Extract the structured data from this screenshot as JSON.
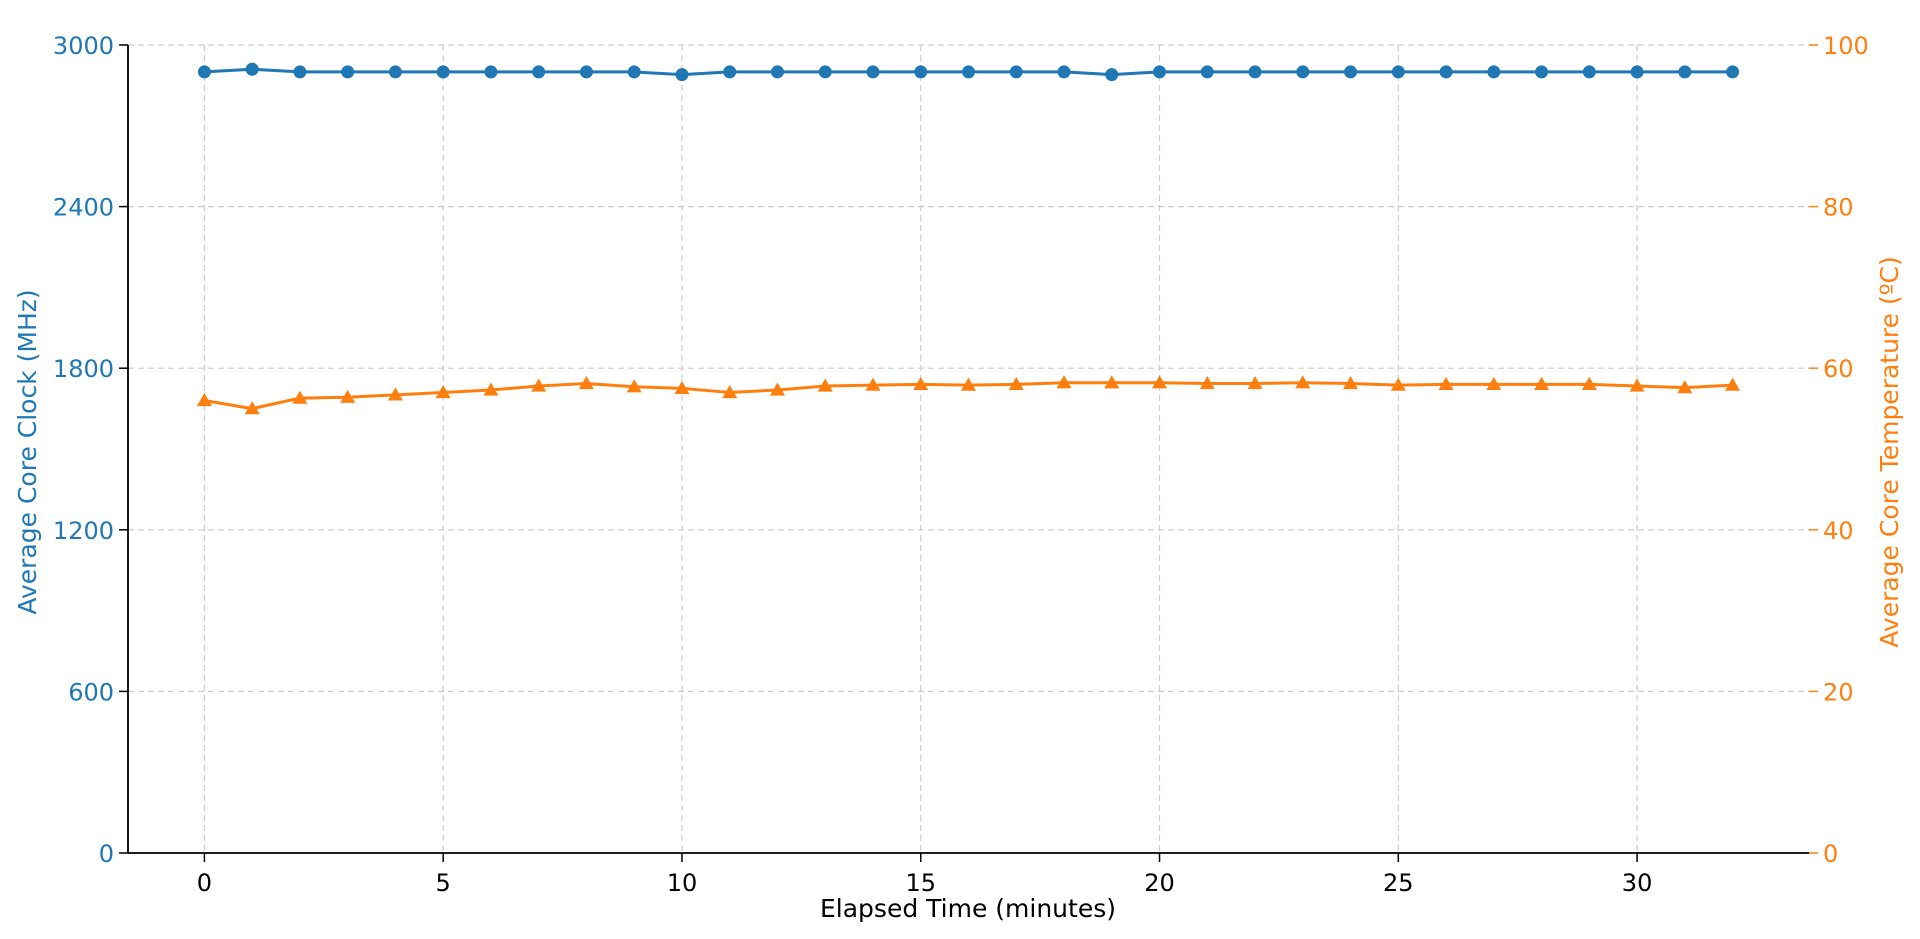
{
  "chart_data": {
    "type": "line",
    "title": "",
    "xlabel": "Elapsed Time (minutes)",
    "ylabel_left": "Average Core Clock (MHz)",
    "ylabel_right": "Average Core Temperature (ºC)",
    "xlim": [
      -1.6,
      33.6
    ],
    "ylim_left": [
      0,
      3000
    ],
    "ylim_right": [
      0,
      100
    ],
    "x_ticks": [
      "0",
      "5",
      "10",
      "15",
      "20",
      "25",
      "30"
    ],
    "y_left_ticks": [
      "0",
      "600",
      "1200",
      "1800",
      "2400",
      "3000"
    ],
    "y_right_ticks": [
      "0",
      "20",
      "40",
      "60",
      "80",
      "100"
    ],
    "grid": true,
    "legend": "none",
    "colors": {
      "clock": "#1f77b4",
      "temperature": "#ff7f0e",
      "axis": "#000000",
      "grid": "#cccccc"
    },
    "x": [
      0,
      1,
      2,
      3,
      4,
      5,
      6,
      7,
      8,
      9,
      10,
      11,
      12,
      13,
      14,
      15,
      16,
      17,
      18,
      19,
      20,
      21,
      22,
      23,
      24,
      25,
      26,
      27,
      28,
      29,
      30,
      31,
      32
    ],
    "series": [
      {
        "axis": "left",
        "marker": "circle",
        "values": [
          2900,
          2910,
          2900,
          2900,
          2900,
          2900,
          2900,
          2900,
          2900,
          2900,
          2890,
          2900,
          2900,
          2900,
          2900,
          2900,
          2900,
          2900,
          2900,
          2890,
          2900,
          2900,
          2900,
          2900,
          2900,
          2900,
          2900,
          2900,
          2900,
          2900,
          2900,
          2900,
          2900
        ]
      },
      {
        "axis": "right",
        "marker": "triangle",
        "values": [
          56.0,
          55.0,
          56.3,
          56.4,
          56.7,
          57.0,
          57.3,
          57.8,
          58.1,
          57.7,
          57.5,
          57.0,
          57.3,
          57.8,
          57.9,
          58.0,
          57.9,
          58.0,
          58.2,
          58.2,
          58.2,
          58.1,
          58.1,
          58.2,
          58.1,
          57.9,
          58.0,
          58.0,
          58.0,
          58.0,
          57.8,
          57.6,
          57.9
        ]
      }
    ]
  }
}
